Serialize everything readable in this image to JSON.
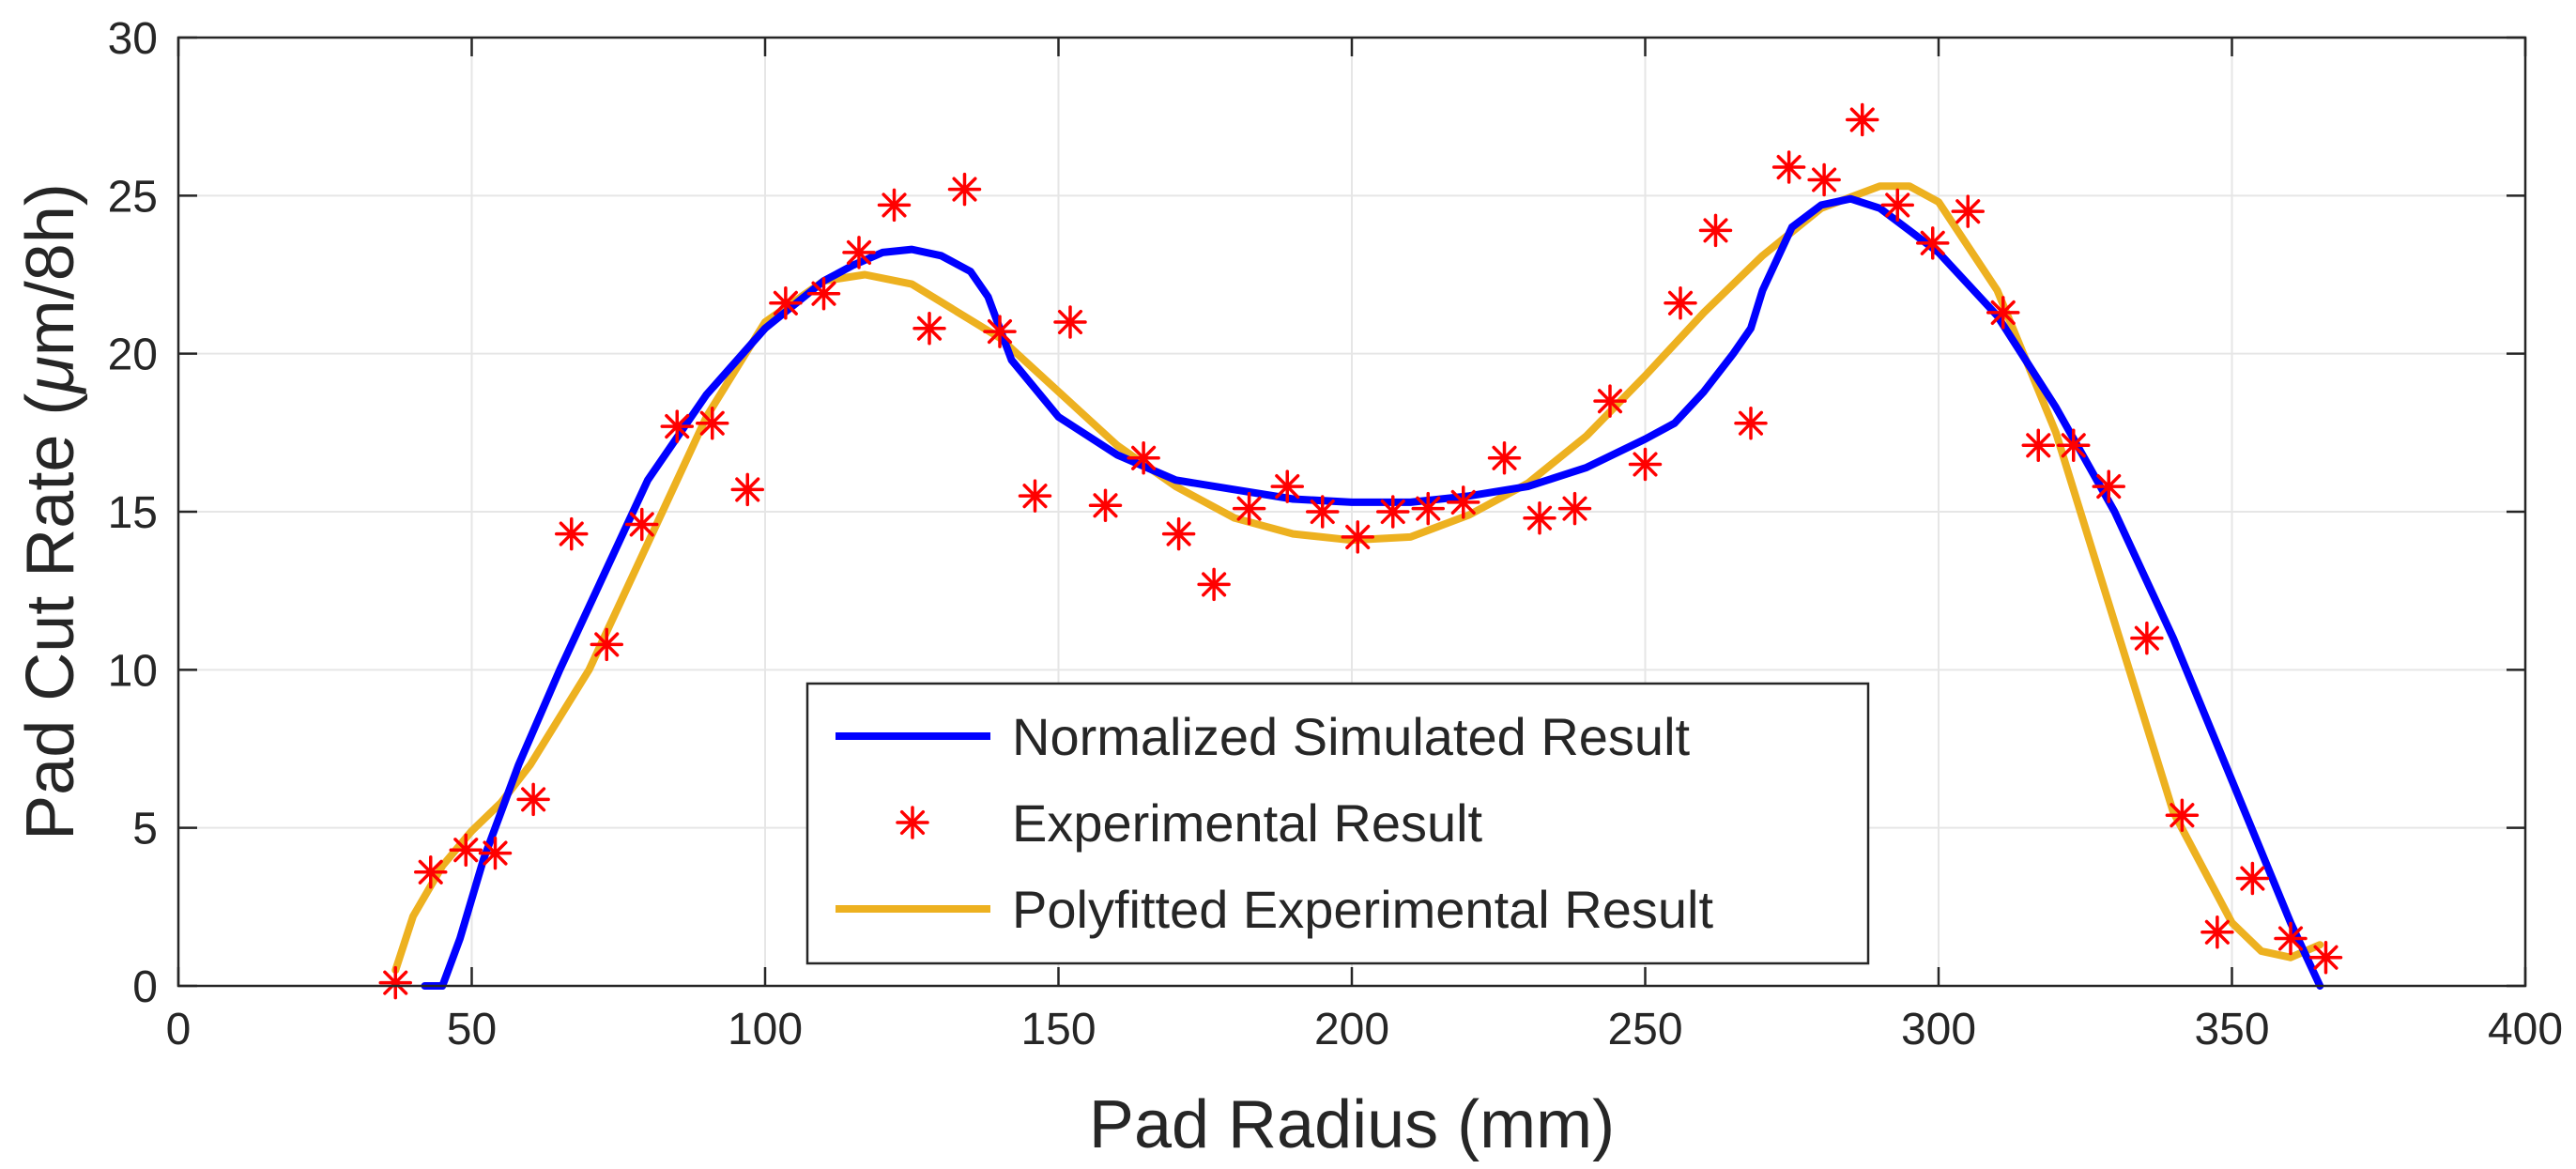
{
  "chart_data": {
    "type": "line",
    "title": "",
    "xlabel": "Pad Radius (mm)",
    "ylabel": "Pad Cut Rate (μm/8h)",
    "ylabel_parts": {
      "prefix": "Pad Cut Rate (",
      "mu": "μ",
      "suffix": "m/8h)"
    },
    "xlim": [
      0,
      400
    ],
    "ylim": [
      0,
      30
    ],
    "xticks": [
      0,
      50,
      100,
      150,
      200,
      250,
      300,
      350,
      400
    ],
    "yticks": [
      0,
      5,
      10,
      15,
      20,
      25,
      30
    ],
    "grid": true,
    "legend_position": "bottom-center",
    "series": [
      {
        "name": "Normalized Simulated Result",
        "kind": "line",
        "color": "#0000ff",
        "points": [
          [
            42,
            0
          ],
          [
            45,
            0
          ],
          [
            48,
            1.5
          ],
          [
            52,
            4
          ],
          [
            58,
            7
          ],
          [
            65,
            10
          ],
          [
            72,
            12.8
          ],
          [
            80,
            16
          ],
          [
            90,
            18.7
          ],
          [
            100,
            20.8
          ],
          [
            110,
            22.3
          ],
          [
            115,
            22.8
          ],
          [
            120,
            23.2
          ],
          [
            125,
            23.3
          ],
          [
            130,
            23.1
          ],
          [
            135,
            22.6
          ],
          [
            138,
            21.8
          ],
          [
            142,
            19.8
          ],
          [
            150,
            18
          ],
          [
            160,
            16.8
          ],
          [
            170,
            16
          ],
          [
            180,
            15.7
          ],
          [
            190,
            15.4
          ],
          [
            200,
            15.3
          ],
          [
            210,
            15.3
          ],
          [
            220,
            15.5
          ],
          [
            230,
            15.8
          ],
          [
            240,
            16.4
          ],
          [
            250,
            17.3
          ],
          [
            255,
            17.8
          ],
          [
            260,
            18.8
          ],
          [
            265,
            20
          ],
          [
            268,
            20.8
          ],
          [
            270,
            22
          ],
          [
            275,
            24
          ],
          [
            280,
            24.7
          ],
          [
            285,
            24.9
          ],
          [
            290,
            24.6
          ],
          [
            300,
            23.2
          ],
          [
            310,
            21.2
          ],
          [
            320,
            18.3
          ],
          [
            330,
            15
          ],
          [
            340,
            11
          ],
          [
            350,
            6.5
          ],
          [
            360,
            2
          ],
          [
            365,
            0
          ]
        ]
      },
      {
        "name": "Experimental Result",
        "kind": "scatter",
        "color": "#ff0000",
        "points": [
          [
            37,
            0.1
          ],
          [
            43,
            3.6
          ],
          [
            49,
            4.3
          ],
          [
            54,
            4.2
          ],
          [
            60.5,
            5.9
          ],
          [
            67,
            14.3
          ],
          [
            73,
            10.8
          ],
          [
            79,
            14.6
          ],
          [
            85,
            17.7
          ],
          [
            91,
            17.8
          ],
          [
            97,
            15.7
          ],
          [
            103.5,
            21.6
          ],
          [
            110,
            21.9
          ],
          [
            116,
            23.2
          ],
          [
            122,
            24.7
          ],
          [
            128,
            20.8
          ],
          [
            134,
            25.2
          ],
          [
            140,
            20.7
          ],
          [
            146,
            15.5
          ],
          [
            152,
            21
          ],
          [
            158,
            15.2
          ],
          [
            164.5,
            16.7
          ],
          [
            170.5,
            14.3
          ],
          [
            176.5,
            12.7
          ],
          [
            182.5,
            15.1
          ],
          [
            189,
            15.8
          ],
          [
            195,
            15
          ],
          [
            201,
            14.2
          ],
          [
            207,
            15
          ],
          [
            213,
            15.1
          ],
          [
            219,
            15.3
          ],
          [
            226,
            16.7
          ],
          [
            232,
            14.8
          ],
          [
            238,
            15.1
          ],
          [
            244,
            18.5
          ],
          [
            250,
            16.5
          ],
          [
            256,
            21.6
          ],
          [
            262,
            23.9
          ],
          [
            268,
            17.8
          ],
          [
            274.5,
            25.9
          ],
          [
            280.5,
            25.5
          ],
          [
            287,
            27.4
          ],
          [
            293,
            24.7
          ],
          [
            299,
            23.5
          ],
          [
            305,
            24.5
          ],
          [
            311,
            21.3
          ],
          [
            317,
            17.1
          ],
          [
            323,
            17.1
          ],
          [
            329,
            15.8
          ],
          [
            335.5,
            11
          ],
          [
            341.5,
            5.4
          ],
          [
            347.5,
            1.7
          ],
          [
            353.5,
            3.4
          ],
          [
            360,
            1.5
          ],
          [
            366,
            0.9
          ]
        ]
      },
      {
        "name": "Polyfitted Experimental Result",
        "kind": "line",
        "color": "#edb120",
        "points": [
          [
            37,
            0.5
          ],
          [
            40,
            2.2
          ],
          [
            45,
            3.8
          ],
          [
            50,
            4.9
          ],
          [
            55,
            5.8
          ],
          [
            60,
            7
          ],
          [
            70,
            10
          ],
          [
            80,
            14
          ],
          [
            90,
            18
          ],
          [
            100,
            21
          ],
          [
            110,
            22.3
          ],
          [
            117,
            22.5
          ],
          [
            125,
            22.2
          ],
          [
            140,
            20.5
          ],
          [
            150,
            18.8
          ],
          [
            160,
            17.1
          ],
          [
            170,
            15.8
          ],
          [
            180,
            14.8
          ],
          [
            190,
            14.3
          ],
          [
            200,
            14.1
          ],
          [
            210,
            14.2
          ],
          [
            220,
            14.9
          ],
          [
            230,
            15.9
          ],
          [
            240,
            17.4
          ],
          [
            250,
            19.3
          ],
          [
            260,
            21.3
          ],
          [
            270,
            23.1
          ],
          [
            280,
            24.6
          ],
          [
            290,
            25.3
          ],
          [
            295,
            25.3
          ],
          [
            300,
            24.8
          ],
          [
            310,
            22
          ],
          [
            320,
            17.5
          ],
          [
            330,
            11.5
          ],
          [
            340,
            5.5
          ],
          [
            350,
            2
          ],
          [
            355,
            1.1
          ],
          [
            360,
            0.9
          ],
          [
            365,
            1.3
          ]
        ]
      }
    ]
  }
}
